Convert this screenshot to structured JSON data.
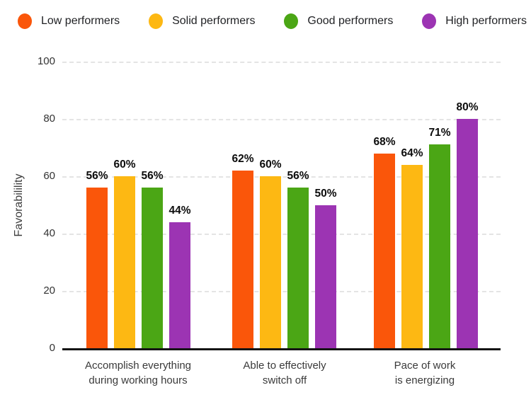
{
  "chart_data": {
    "type": "bar",
    "title": "",
    "ylabel": "Favorabilility",
    "xlabel": "",
    "ylim": [
      0,
      100
    ],
    "yticks": [
      0,
      20,
      40,
      60,
      80,
      100
    ],
    "grid": "horizontal dashed gridlines at 20,40,60,80,100",
    "legend_position": "top",
    "categories": [
      {
        "line1": "Accomplish everything",
        "line2": "during working hours"
      },
      {
        "line1": "Able to effectively",
        "line2": "switch off"
      },
      {
        "line1": "Pace of work",
        "line2": "is energizing"
      }
    ],
    "series": [
      {
        "name": "Low performers",
        "color": "#FA560A",
        "values": [
          56,
          62,
          68
        ],
        "value_labels": [
          "56%",
          "62%",
          "68%"
        ]
      },
      {
        "name": "Solid performers",
        "color": "#FDB813",
        "values": [
          60,
          60,
          64
        ],
        "value_labels": [
          "60%",
          "60%",
          "64%"
        ]
      },
      {
        "name": "Good performers",
        "color": "#4BA615",
        "values": [
          56,
          56,
          71
        ],
        "value_labels": [
          "56%",
          "56%",
          "71%"
        ]
      },
      {
        "name": "High performers",
        "color": "#9C34B3",
        "values": [
          44,
          50,
          80
        ],
        "value_labels": [
          "44%",
          "50%",
          "80%"
        ]
      }
    ],
    "value_label_suffix": "%"
  },
  "colors": {
    "background": "#ffffff",
    "gridline": "#e4e4e4",
    "axis_line": "#141414",
    "value_label_text": "#0c0c0c",
    "tick_text": "#333333",
    "category_text": "#3a3a3a",
    "legend_text": "#1f2023",
    "y_axis_title_text": "#3c3c3c"
  }
}
